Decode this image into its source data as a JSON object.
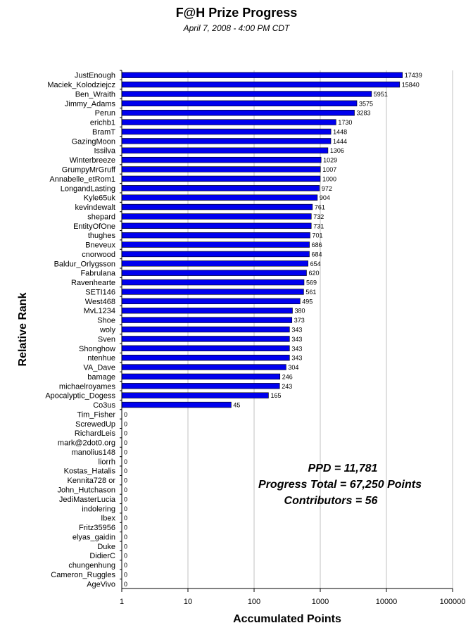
{
  "chart_data": {
    "type": "bar",
    "orientation": "horizontal",
    "title": "F@H Prize Progress",
    "subtitle": "April 7, 2008 -  4:00 PM CDT",
    "xlabel": "Accumulated Points",
    "ylabel": "Relative Rank",
    "x_scale": "log",
    "xlim": [
      1,
      100000
    ],
    "x_ticks": [
      "1",
      "10",
      "100",
      "1000",
      "10000",
      "100000"
    ],
    "grid": "vertical",
    "bar_color": "#0000ee",
    "categories": [
      "JustEnough",
      "Maciek_Kolodziejcz",
      "Ben_Wraith",
      "Jimmy_Adams",
      "Perun",
      "erichb1",
      "BramT",
      "GazingMoon",
      "Issilva",
      "Winterbreeze",
      "GrumpyMrGruff",
      "Annabelle_etRom1",
      "LongandLasting",
      "Kyle65uk",
      "kevindewalt",
      "shepard",
      "EntityOfOne",
      "thughes",
      "Bneveux",
      "cnorwood",
      "Baldur_Orlygsson",
      "Fabrulana",
      "Ravenhearte",
      "SETI146",
      "West468",
      "MvL1234",
      "Shoe",
      "woly",
      "Sven",
      "Shonghow",
      "ntenhue",
      "VA_Dave",
      "bamage",
      "michaelroyames",
      "Apocalyptic_Dogess",
      "Co3us",
      "Tim_Fisher",
      "ScrewedUp",
      "RichardLeis",
      "mark@2dot0.org",
      "manolius148",
      "liorrh",
      "Kostas_Hatalis",
      "Kennita728 or",
      "John_Hutchason",
      "JediMasterLucia",
      "indolering",
      "Ibex",
      "Fritz35956",
      "elyas_gaidin",
      "Duke",
      "DidierC",
      "chungenhung",
      "Cameron_Ruggles",
      "AgeVivo"
    ],
    "values": [
      17439,
      15840,
      5951,
      3575,
      3283,
      1730,
      1448,
      1444,
      1306,
      1029,
      1007,
      1000,
      972,
      904,
      761,
      732,
      731,
      701,
      686,
      684,
      654,
      620,
      569,
      561,
      495,
      380,
      373,
      343,
      343,
      343,
      343,
      304,
      246,
      243,
      165,
      45,
      0,
      0,
      0,
      0,
      0,
      0,
      0,
      0,
      0,
      0,
      0,
      0,
      0,
      0,
      0,
      0,
      0,
      0,
      0
    ]
  },
  "annotations": {
    "ppd": "PPD = 11,781",
    "progress_total": "Progress Total = 67,250 Points",
    "contributors": "Contributors = 56"
  }
}
